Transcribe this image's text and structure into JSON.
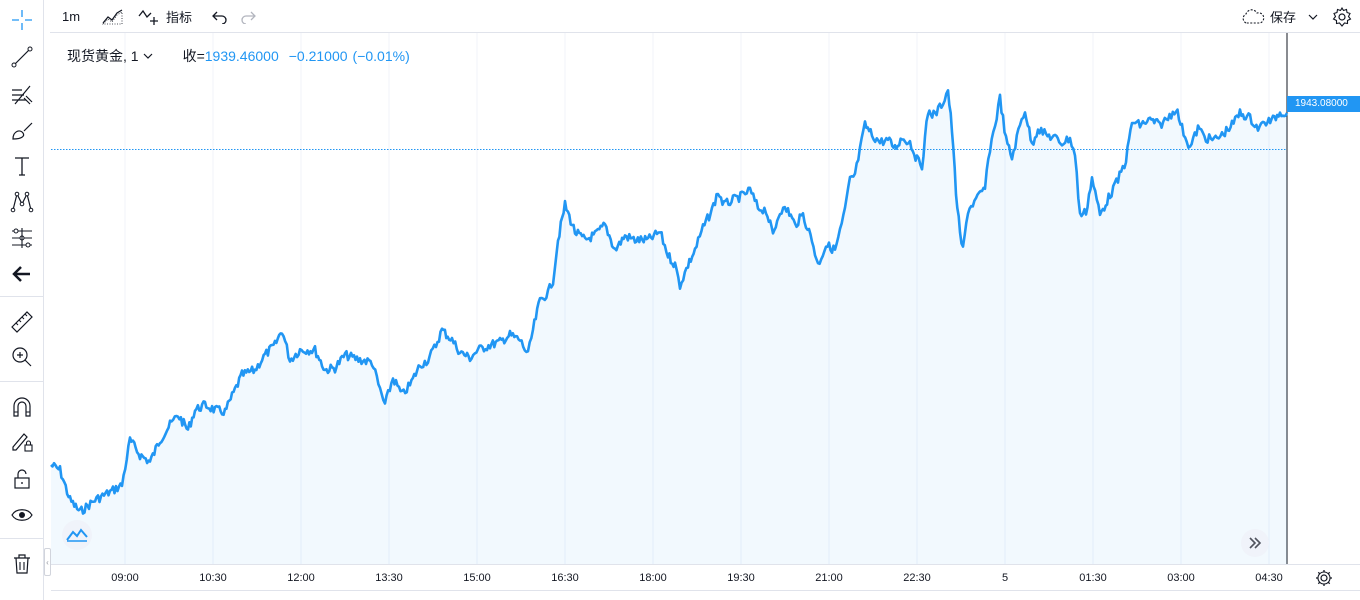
{
  "toolbar": {
    "interval": "1m",
    "indicators_label": "指标",
    "save_label": "保存"
  },
  "legend": {
    "symbol": "现货黄金, 1",
    "close_label": "收=",
    "close_value": "1939.46000",
    "change": "−0.21000",
    "change_pct": "(−0.01%)"
  },
  "price_axis": {
    "last_price": "1943.08000",
    "accent_color": "#2196f3"
  },
  "time_axis": {
    "labels": [
      "09:00",
      "10:30",
      "12:00",
      "13:30",
      "15:00",
      "16:30",
      "18:00",
      "19:30",
      "21:00",
      "22:30",
      "5",
      "01:30",
      "03:00",
      "04:30"
    ]
  },
  "left_toolbar": {
    "icons": [
      "crosshair-icon",
      "trend-line-icon",
      "fib-icon",
      "brush-icon",
      "text-icon",
      "pattern-icon",
      "prediction-icon",
      "back-arrow-icon",
      "ruler-icon",
      "zoom-in-icon",
      "magnet-icon",
      "lock-drawing-icon",
      "lock-icon",
      "eye-icon",
      "trash-icon"
    ]
  }
}
